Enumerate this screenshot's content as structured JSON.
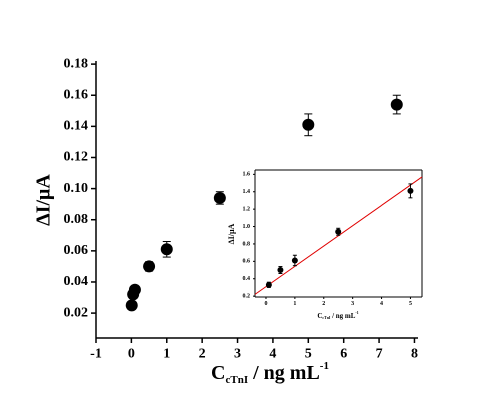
{
  "chart_data": [
    {
      "type": "scatter",
      "x_label": {
        "main": "C",
        "sub": "cTnI",
        "rest": " / ng mL",
        "sup": "-1"
      },
      "y_label": "ΔI/μA",
      "x": [
        0.01,
        0.05,
        0.1,
        0.5,
        1,
        2.5,
        5,
        7.5
      ],
      "values": [
        0.025,
        0.032,
        0.035,
        0.05,
        0.061,
        0.094,
        0.141,
        0.154
      ],
      "errors": [
        0.002,
        0.002,
        0.002,
        0.003,
        0.005,
        0.004,
        0.007,
        0.006
      ],
      "color": "#000000",
      "xlim": [
        -1,
        8.1
      ],
      "ylim": [
        0.004,
        0.182
      ],
      "xticks": [
        -1,
        0,
        1,
        2,
        3,
        4,
        5,
        6,
        7,
        8
      ],
      "yticks": [
        0.02,
        0.04,
        0.06,
        0.08,
        {
          "value": 0.1,
          "label": "0.10"
        },
        0.12,
        0.14,
        0.16,
        0.18
      ]
    },
    {
      "type": "scatter",
      "x_label": {
        "main": "C",
        "sub": "cTnI",
        "rest": " / ng mL",
        "sup": "-1"
      },
      "y_label": "ΔI/μA",
      "x": [
        0.1,
        0.5,
        1,
        2.5,
        5
      ],
      "values": [
        0.33,
        0.5,
        0.61,
        0.94,
        1.41
      ],
      "errors": [
        0.03,
        0.04,
        0.06,
        0.04,
        0.08
      ],
      "color": "#000000",
      "fit": {
        "color": "#e00000",
        "x": [
          -0.38,
          5.4
        ],
        "y": [
          0.22,
          1.57
        ]
      },
      "xlim": [
        -0.38,
        5.4
      ],
      "ylim": [
        0.19,
        1.65
      ],
      "xticks": [
        0,
        1,
        2,
        3,
        4,
        5
      ],
      "yticks": [
        0.2,
        0.4,
        0.6,
        0.8,
        {
          "value": 1,
          "label": "1.0"
        },
        1.2,
        1.4,
        1.6
      ]
    }
  ]
}
